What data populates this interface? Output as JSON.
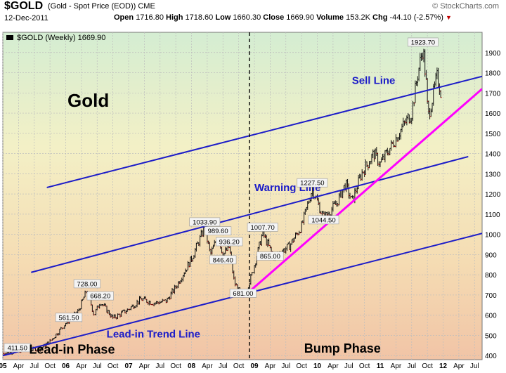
{
  "header": {
    "symbol": "$GOLD",
    "description": "(Gold - Spot Price (EOD)) CME",
    "date": "12-Dec-2011",
    "open_label": "Open",
    "open": "1716.80",
    "high_label": "High",
    "high": "1718.60",
    "low_label": "Low",
    "low": "1660.30",
    "close_label": "Close",
    "close": "1669.90",
    "volume_label": "Volume",
    "volume": "153.2K",
    "chg_label": "Chg",
    "chg": "-44.10 (-2.57%)",
    "brand": "© StockCharts.com"
  },
  "chart_data": {
    "type": "bar",
    "legend": "$GOLD (Weekly) 1669.90",
    "title": "Gold",
    "yticks": [
      400,
      500,
      600,
      700,
      800,
      900,
      1000,
      1100,
      1200,
      1300,
      1400,
      1500,
      1600,
      1700,
      1800,
      1900
    ],
    "ylim": [
      380,
      2000
    ],
    "xticks": [
      {
        "label": "05",
        "t": 2005.0
      },
      {
        "label": "Apr",
        "t": 2005.25
      },
      {
        "label": "Jul",
        "t": 2005.5
      },
      {
        "label": "Oct",
        "t": 2005.75
      },
      {
        "label": "06",
        "t": 2006.0
      },
      {
        "label": "Apr",
        "t": 2006.25
      },
      {
        "label": "Jul",
        "t": 2006.5
      },
      {
        "label": "Oct",
        "t": 2006.75
      },
      {
        "label": "07",
        "t": 2007.0
      },
      {
        "label": "Apr",
        "t": 2007.25
      },
      {
        "label": "Jul",
        "t": 2007.5
      },
      {
        "label": "Oct",
        "t": 2007.75
      },
      {
        "label": "08",
        "t": 2008.0
      },
      {
        "label": "Apr",
        "t": 2008.25
      },
      {
        "label": "Jul",
        "t": 2008.5
      },
      {
        "label": "Oct",
        "t": 2008.75
      },
      {
        "label": "09",
        "t": 2009.0
      },
      {
        "label": "Apr",
        "t": 2009.25
      },
      {
        "label": "Jul",
        "t": 2009.5
      },
      {
        "label": "Oct",
        "t": 2009.75
      },
      {
        "label": "10",
        "t": 2010.0
      },
      {
        "label": "Apr",
        "t": 2010.25
      },
      {
        "label": "Jul",
        "t": 2010.5
      },
      {
        "label": "Oct",
        "t": 2010.75
      },
      {
        "label": "11",
        "t": 2011.0
      },
      {
        "label": "Apr",
        "t": 2011.25
      },
      {
        "label": "Jul",
        "t": 2011.5
      },
      {
        "label": "Oct",
        "t": 2011.75
      },
      {
        "label": "12",
        "t": 2012.0
      },
      {
        "label": "Apr",
        "t": 2012.25
      },
      {
        "label": "Jul",
        "t": 2012.5
      }
    ],
    "xlim": [
      2005.0,
      2012.62
    ],
    "price_path": [
      [
        2005.0,
        411.5
      ],
      [
        2005.3,
        425
      ],
      [
        2005.6,
        435
      ],
      [
        2005.75,
        470
      ],
      [
        2006.0,
        560
      ],
      [
        2006.2,
        620
      ],
      [
        2006.34,
        728
      ],
      [
        2006.45,
        600
      ],
      [
        2006.55,
        668.2
      ],
      [
        2006.75,
        585
      ],
      [
        2006.95,
        620
      ],
      [
        2007.0,
        630
      ],
      [
        2007.2,
        680
      ],
      [
        2007.4,
        660
      ],
      [
        2007.6,
        670
      ],
      [
        2007.75,
        740
      ],
      [
        2008.0,
        880
      ],
      [
        2008.21,
        1033.9
      ],
      [
        2008.3,
        900
      ],
      [
        2008.42,
        989.6
      ],
      [
        2008.5,
        900
      ],
      [
        2008.6,
        936.2
      ],
      [
        2008.68,
        760
      ],
      [
        2008.82,
        681
      ],
      [
        2008.96,
        800
      ],
      [
        2009.13,
        1007.7
      ],
      [
        2009.3,
        890
      ],
      [
        2009.55,
        940
      ],
      [
        2009.75,
        1040
      ],
      [
        2009.92,
        1227.5
      ],
      [
        2010.1,
        1080
      ],
      [
        2010.3,
        1150
      ],
      [
        2010.45,
        1250
      ],
      [
        2010.55,
        1160
      ],
      [
        2010.7,
        1300
      ],
      [
        2010.9,
        1400
      ],
      [
        2011.0,
        1350
      ],
      [
        2011.2,
        1450
      ],
      [
        2011.35,
        1530
      ],
      [
        2011.5,
        1600
      ],
      [
        2011.6,
        1800
      ],
      [
        2011.68,
        1923.7
      ],
      [
        2011.73,
        1750
      ],
      [
        2011.76,
        1580
      ],
      [
        2011.85,
        1700
      ],
      [
        2011.9,
        1780
      ],
      [
        2011.95,
        1730
      ],
      [
        2011.98,
        1669.9
      ]
    ],
    "price_labels": [
      {
        "text": "411.50",
        "t": 2005.0,
        "v": 411.5
      },
      {
        "text": "728.00",
        "t": 2006.34,
        "v": 728
      },
      {
        "text": "668.20",
        "t": 2006.55,
        "v": 668.2
      },
      {
        "text": "561.50",
        "t": 2006.05,
        "v": 561.5
      },
      {
        "text": "1033.90",
        "t": 2008.21,
        "v": 1033.9
      },
      {
        "text": "989.60",
        "t": 2008.42,
        "v": 989.6
      },
      {
        "text": "936.20",
        "t": 2008.6,
        "v": 936.2
      },
      {
        "text": "846.40",
        "t": 2008.5,
        "v": 846.4
      },
      {
        "text": "681.00",
        "t": 2008.82,
        "v": 681
      },
      {
        "text": "1007.70",
        "t": 2009.13,
        "v": 1007.7
      },
      {
        "text": "865.00",
        "t": 2009.25,
        "v": 865
      },
      {
        "text": "1227.50",
        "t": 2009.92,
        "v": 1227.5
      },
      {
        "text": "1044.50",
        "t": 2010.1,
        "v": 1044.5
      },
      {
        "text": "1923.70",
        "t": 2011.68,
        "v": 1923.7
      }
    ],
    "trend_lines": [
      {
        "name": "Sell Line",
        "color": "#1c1cc8",
        "from": [
          2005.7,
          1232
        ],
        "to": [
          2012.62,
          1782
        ],
        "label_at": [
          2010.55,
          1745
        ]
      },
      {
        "name": "Warning Line",
        "color": "#1c1cc8",
        "from": [
          2005.45,
          812
        ],
        "to": [
          2012.4,
          1385
        ],
        "label_at": [
          2009.0,
          1215
        ]
      },
      {
        "name": "Lead-in Trend Line",
        "color": "#1c1cc8",
        "from": [
          2005.0,
          400
        ],
        "to": [
          2012.62,
          1005
        ],
        "label_at": [
          2006.65,
          490
        ]
      },
      {
        "name": "",
        "color": "#ff00ff",
        "from": [
          2008.82,
          690
        ],
        "to": [
          2012.62,
          1720
        ]
      }
    ],
    "divider_t": 2008.92,
    "phase_labels": [
      {
        "text": "Lead-in Phase",
        "t": 2006.1,
        "v": 410
      },
      {
        "text": "Bump Phase",
        "t": 2010.4,
        "v": 415
      }
    ]
  }
}
